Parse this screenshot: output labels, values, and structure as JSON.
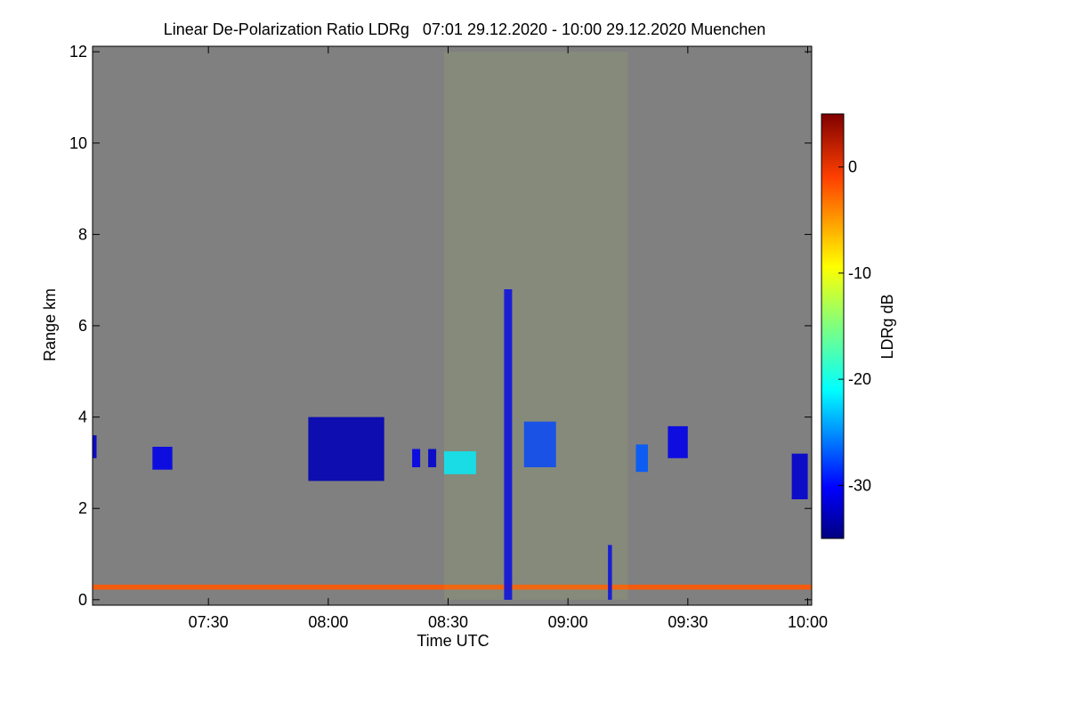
{
  "chart_data": {
    "type": "heatmap",
    "title": "Linear De-Polarization Ratio LDRg   07:01 29.12.2020 - 10:00 29.12.2020 Muenchen",
    "xlabel": "Time UTC",
    "ylabel": "Range km",
    "x_range_minutes_utc": [
      421,
      601
    ],
    "x_ticks": [
      {
        "minutes": 450,
        "label": "07:30"
      },
      {
        "minutes": 480,
        "label": "08:00"
      },
      {
        "minutes": 510,
        "label": "08:30"
      },
      {
        "minutes": 540,
        "label": "09:00"
      },
      {
        "minutes": 570,
        "label": "09:30"
      },
      {
        "minutes": 600,
        "label": "10:00"
      }
    ],
    "y_range_km": [
      -0.12,
      12.12
    ],
    "y_ticks": [
      {
        "value": 0,
        "label": "0"
      },
      {
        "value": 2,
        "label": "2"
      },
      {
        "value": 4,
        "label": "4"
      },
      {
        "value": 6,
        "label": "6"
      },
      {
        "value": 8,
        "label": "8"
      },
      {
        "value": 10,
        "label": "10"
      },
      {
        "value": 12,
        "label": "12"
      }
    ],
    "colorbar": {
      "label": "LDRg dB",
      "range_db": [
        -35,
        5
      ],
      "ticks": [
        {
          "value": 0,
          "label": "0"
        },
        {
          "value": -10,
          "label": "-10"
        },
        {
          "value": -20,
          "label": "-20"
        },
        {
          "value": -30,
          "label": "-30"
        }
      ]
    },
    "background_color": "#808080",
    "features": [
      {
        "name": "ground-clutter-band",
        "t": [
          421,
          601
        ],
        "km": [
          0.22,
          0.33
        ],
        "db": -2
      },
      {
        "name": "cloud-layer-0705",
        "t": [
          421,
          422
        ],
        "km": [
          3.1,
          3.6
        ],
        "db": -32
      },
      {
        "name": "cloud-layer-0718",
        "t": [
          436,
          441
        ],
        "km": [
          2.85,
          3.35
        ],
        "db": -31
      },
      {
        "name": "cloud-layer-0800",
        "t": [
          475,
          494
        ],
        "km": [
          2.6,
          4.0
        ],
        "db": -33
      },
      {
        "name": "cloud-layer-0825",
        "t": [
          501,
          503
        ],
        "km": [
          2.9,
          3.3
        ],
        "db": -31
      },
      {
        "name": "cloud-layer-0830",
        "t": [
          505,
          507
        ],
        "km": [
          2.9,
          3.3
        ],
        "db": -32
      },
      {
        "name": "cloud-layer-0840",
        "t": [
          509,
          517
        ],
        "km": [
          2.75,
          3.25
        ],
        "db": -22
      },
      {
        "name": "fall-streak-0852",
        "t": [
          524,
          526
        ],
        "km": [
          0.0,
          6.8
        ],
        "db": -31
      },
      {
        "name": "virga-0900",
        "t": [
          529,
          537
        ],
        "km": [
          2.9,
          3.9
        ],
        "db": -28
      },
      {
        "name": "fall-streak-0915",
        "t": [
          550,
          551
        ],
        "km": [
          0.0,
          1.2
        ],
        "db": -31
      },
      {
        "name": "cloud-layer-0921",
        "t": [
          557,
          560
        ],
        "km": [
          2.8,
          3.4
        ],
        "db": -27
      },
      {
        "name": "cloud-layer-0930",
        "t": [
          565,
          570
        ],
        "km": [
          3.1,
          3.8
        ],
        "db": -31
      },
      {
        "name": "cloud-layer-0958",
        "t": [
          596,
          600
        ],
        "km": [
          2.2,
          3.2
        ],
        "db": -32
      },
      {
        "name": "sparse-noise-region",
        "t": [
          509,
          555
        ],
        "km": [
          0.0,
          12.0
        ],
        "db": -12
      }
    ]
  }
}
